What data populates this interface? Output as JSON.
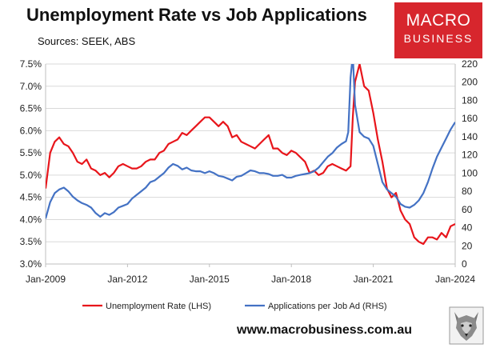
{
  "header": {
    "title": "Unemployment Rate vs Job Applications",
    "subtitle": "Sources: SEEK, ABS"
  },
  "logo": {
    "line1": "MACRO",
    "line2": "BUSINESS",
    "color": "#d7262d"
  },
  "wolf_icon": "wolf-head-icon",
  "footer": {
    "url": "www.macrobusiness.com.au"
  },
  "chart_data": {
    "type": "line",
    "x_range": [
      "2009-01",
      "2024-01"
    ],
    "x_tick_labels": [
      {
        "date": "2009-01",
        "label": "Jan-2009"
      },
      {
        "date": "2012-01",
        "label": "Jan-2012"
      },
      {
        "date": "2015-01",
        "label": "Jan-2015"
      },
      {
        "date": "2018-01",
        "label": "Jan-2018"
      },
      {
        "date": "2021-01",
        "label": "Jan-2021"
      },
      {
        "date": "2024-01",
        "label": "Jan-2024"
      }
    ],
    "y_left": {
      "min": 3.0,
      "max": 7.5,
      "step": 0.5,
      "tick_labels": [
        "3.0%",
        "3.5%",
        "4.0%",
        "4.5%",
        "5.0%",
        "5.5%",
        "6.0%",
        "6.5%",
        "7.0%",
        "7.5%"
      ]
    },
    "y_right": {
      "min": 0,
      "max": 220,
      "step": 20,
      "tick_labels": [
        "0",
        "20",
        "40",
        "60",
        "80",
        "100",
        "120",
        "140",
        "160",
        "180",
        "200",
        "220"
      ]
    },
    "series": [
      {
        "name": "Unemployment Rate (LHS)",
        "axis": "left",
        "color": "#e8151b",
        "points": [
          [
            "2009-01",
            4.7
          ],
          [
            "2009-03",
            5.5
          ],
          [
            "2009-05",
            5.75
          ],
          [
            "2009-07",
            5.85
          ],
          [
            "2009-09",
            5.7
          ],
          [
            "2009-11",
            5.65
          ],
          [
            "2010-01",
            5.5
          ],
          [
            "2010-03",
            5.3
          ],
          [
            "2010-05",
            5.25
          ],
          [
            "2010-07",
            5.35
          ],
          [
            "2010-09",
            5.15
          ],
          [
            "2010-11",
            5.1
          ],
          [
            "2011-01",
            5.0
          ],
          [
            "2011-03",
            5.05
          ],
          [
            "2011-05",
            4.95
          ],
          [
            "2011-07",
            5.05
          ],
          [
            "2011-09",
            5.2
          ],
          [
            "2011-11",
            5.25
          ],
          [
            "2012-01",
            5.2
          ],
          [
            "2012-03",
            5.15
          ],
          [
            "2012-05",
            5.15
          ],
          [
            "2012-07",
            5.2
          ],
          [
            "2012-09",
            5.3
          ],
          [
            "2012-11",
            5.35
          ],
          [
            "2013-01",
            5.35
          ],
          [
            "2013-03",
            5.5
          ],
          [
            "2013-05",
            5.55
          ],
          [
            "2013-07",
            5.7
          ],
          [
            "2013-09",
            5.75
          ],
          [
            "2013-11",
            5.8
          ],
          [
            "2014-01",
            5.95
          ],
          [
            "2014-03",
            5.9
          ],
          [
            "2014-05",
            6.0
          ],
          [
            "2014-07",
            6.1
          ],
          [
            "2014-09",
            6.2
          ],
          [
            "2014-11",
            6.3
          ],
          [
            "2015-01",
            6.3
          ],
          [
            "2015-03",
            6.2
          ],
          [
            "2015-05",
            6.1
          ],
          [
            "2015-07",
            6.2
          ],
          [
            "2015-09",
            6.1
          ],
          [
            "2015-11",
            5.85
          ],
          [
            "2016-01",
            5.9
          ],
          [
            "2016-03",
            5.75
          ],
          [
            "2016-05",
            5.7
          ],
          [
            "2016-07",
            5.65
          ],
          [
            "2016-09",
            5.6
          ],
          [
            "2016-11",
            5.7
          ],
          [
            "2017-01",
            5.8
          ],
          [
            "2017-03",
            5.9
          ],
          [
            "2017-05",
            5.6
          ],
          [
            "2017-07",
            5.6
          ],
          [
            "2017-09",
            5.5
          ],
          [
            "2017-11",
            5.45
          ],
          [
            "2018-01",
            5.55
          ],
          [
            "2018-03",
            5.5
          ],
          [
            "2018-05",
            5.4
          ],
          [
            "2018-07",
            5.3
          ],
          [
            "2018-09",
            5.05
          ],
          [
            "2018-11",
            5.1
          ],
          [
            "2019-01",
            5.0
          ],
          [
            "2019-03",
            5.05
          ],
          [
            "2019-05",
            5.2
          ],
          [
            "2019-07",
            5.25
          ],
          [
            "2019-09",
            5.2
          ],
          [
            "2019-11",
            5.15
          ],
          [
            "2020-01",
            5.1
          ],
          [
            "2020-03",
            5.2
          ],
          [
            "2020-04",
            6.3
          ],
          [
            "2020-05",
            7.1
          ],
          [
            "2020-07",
            7.5
          ],
          [
            "2020-09",
            7.0
          ],
          [
            "2020-11",
            6.9
          ],
          [
            "2021-01",
            6.4
          ],
          [
            "2021-03",
            5.8
          ],
          [
            "2021-05",
            5.3
          ],
          [
            "2021-07",
            4.7
          ],
          [
            "2021-09",
            4.5
          ],
          [
            "2021-11",
            4.6
          ],
          [
            "2022-01",
            4.2
          ],
          [
            "2022-03",
            4.0
          ],
          [
            "2022-05",
            3.9
          ],
          [
            "2022-07",
            3.6
          ],
          [
            "2022-09",
            3.5
          ],
          [
            "2022-11",
            3.45
          ],
          [
            "2023-01",
            3.6
          ],
          [
            "2023-03",
            3.6
          ],
          [
            "2023-05",
            3.55
          ],
          [
            "2023-07",
            3.7
          ],
          [
            "2023-09",
            3.6
          ],
          [
            "2023-11",
            3.85
          ],
          [
            "2024-01",
            3.9
          ]
        ]
      },
      {
        "name": "Applications per Job Ad (RHS)",
        "axis": "right",
        "color": "#4472c4",
        "points": [
          [
            "2009-01",
            50
          ],
          [
            "2009-03",
            68
          ],
          [
            "2009-05",
            78
          ],
          [
            "2009-07",
            82
          ],
          [
            "2009-09",
            84
          ],
          [
            "2009-11",
            80
          ],
          [
            "2010-01",
            74
          ],
          [
            "2010-03",
            70
          ],
          [
            "2010-05",
            67
          ],
          [
            "2010-07",
            65
          ],
          [
            "2010-09",
            62
          ],
          [
            "2010-11",
            56
          ],
          [
            "2011-01",
            52
          ],
          [
            "2011-03",
            56
          ],
          [
            "2011-05",
            54
          ],
          [
            "2011-07",
            57
          ],
          [
            "2011-09",
            62
          ],
          [
            "2011-11",
            64
          ],
          [
            "2012-01",
            66
          ],
          [
            "2012-03",
            72
          ],
          [
            "2012-05",
            76
          ],
          [
            "2012-07",
            80
          ],
          [
            "2012-09",
            84
          ],
          [
            "2012-11",
            90
          ],
          [
            "2013-01",
            92
          ],
          [
            "2013-03",
            96
          ],
          [
            "2013-05",
            100
          ],
          [
            "2013-07",
            106
          ],
          [
            "2013-09",
            110
          ],
          [
            "2013-11",
            108
          ],
          [
            "2014-01",
            104
          ],
          [
            "2014-03",
            106
          ],
          [
            "2014-05",
            103
          ],
          [
            "2014-07",
            102
          ],
          [
            "2014-09",
            102
          ],
          [
            "2014-11",
            100
          ],
          [
            "2015-01",
            102
          ],
          [
            "2015-03",
            100
          ],
          [
            "2015-05",
            97
          ],
          [
            "2015-07",
            96
          ],
          [
            "2015-09",
            94
          ],
          [
            "2015-11",
            92
          ],
          [
            "2016-01",
            96
          ],
          [
            "2016-03",
            97
          ],
          [
            "2016-05",
            100
          ],
          [
            "2016-07",
            103
          ],
          [
            "2016-09",
            102
          ],
          [
            "2016-11",
            100
          ],
          [
            "2017-01",
            100
          ],
          [
            "2017-03",
            99
          ],
          [
            "2017-05",
            97
          ],
          [
            "2017-07",
            97
          ],
          [
            "2017-09",
            98
          ],
          [
            "2017-11",
            95
          ],
          [
            "2018-01",
            95
          ],
          [
            "2018-03",
            97
          ],
          [
            "2018-05",
            98
          ],
          [
            "2018-07",
            99
          ],
          [
            "2018-09",
            100
          ],
          [
            "2018-11",
            102
          ],
          [
            "2019-01",
            106
          ],
          [
            "2019-03",
            112
          ],
          [
            "2019-05",
            118
          ],
          [
            "2019-07",
            122
          ],
          [
            "2019-09",
            128
          ],
          [
            "2019-11",
            132
          ],
          [
            "2020-01",
            135
          ],
          [
            "2020-02",
            145
          ],
          [
            "2020-03",
            205
          ],
          [
            "2020-04",
            230
          ],
          [
            "2020-05",
            175
          ],
          [
            "2020-07",
            145
          ],
          [
            "2020-09",
            140
          ],
          [
            "2020-11",
            138
          ],
          [
            "2021-01",
            130
          ],
          [
            "2021-03",
            110
          ],
          [
            "2021-05",
            90
          ],
          [
            "2021-07",
            82
          ],
          [
            "2021-09",
            78
          ],
          [
            "2021-11",
            74
          ],
          [
            "2022-01",
            66
          ],
          [
            "2022-03",
            63
          ],
          [
            "2022-05",
            62
          ],
          [
            "2022-07",
            65
          ],
          [
            "2022-09",
            70
          ],
          [
            "2022-11",
            78
          ],
          [
            "2023-01",
            90
          ],
          [
            "2023-03",
            105
          ],
          [
            "2023-05",
            118
          ],
          [
            "2023-07",
            128
          ],
          [
            "2023-09",
            138
          ],
          [
            "2023-11",
            148
          ],
          [
            "2024-01",
            156
          ]
        ]
      }
    ],
    "grid": "horizontal",
    "legend_position": "bottom"
  }
}
